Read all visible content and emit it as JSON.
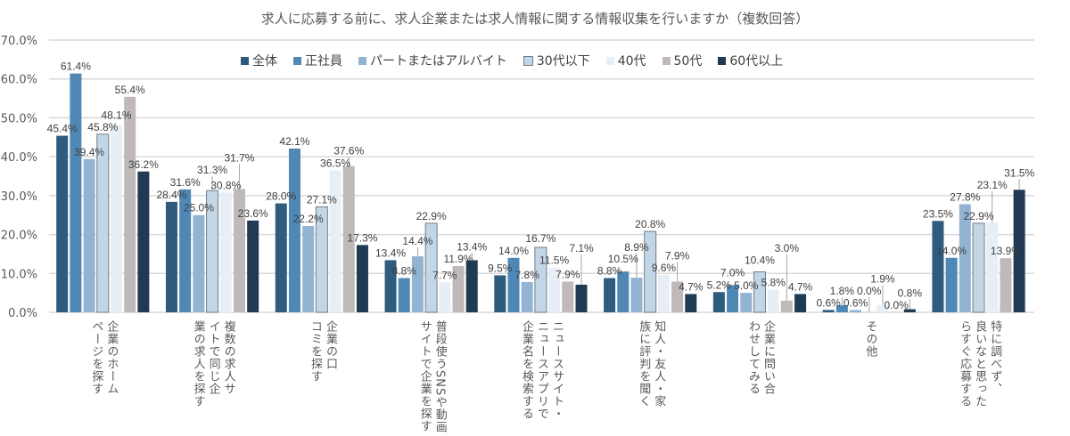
{
  "chart_data": {
    "type": "bar",
    "title": "求人に応募する前に、求人企業または求人情報に関する情報収集を行いますか（複数回答）",
    "categories": [
      "企業のホーム\nページを探す",
      "複数の求人サ\nイトで同じ企\n業の求人を探す",
      "企業の口\nコミを探す",
      "普段使うSNSや動画\nサイトで企業を探す",
      "ニュースサイト・\nニュースアプリで\n企業名を検索する",
      "知人・友人・家\n族に評判を聞く",
      "企業に問い合\nわせしてみる",
      "その他",
      "特に調べず、\n良いなと思った\nらすぐ応募する"
    ],
    "series": [
      {
        "name": "全体",
        "color": "#2f5b7c",
        "values": [
          45.4,
          28.4,
          28.0,
          13.4,
          9.5,
          8.8,
          5.2,
          0.6,
          23.5
        ]
      },
      {
        "name": "正社員",
        "color": "#4f87b5",
        "values": [
          61.4,
          31.6,
          42.1,
          8.8,
          14.0,
          10.5,
          7.0,
          1.8,
          14.0
        ]
      },
      {
        "name": "パートまたはアルバイト",
        "color": "#93b3d3",
        "values": [
          39.4,
          25.0,
          22.2,
          14.4,
          7.8,
          8.9,
          5.0,
          0.6,
          27.8
        ]
      },
      {
        "name": "30代以下",
        "color": "#c3d6e6",
        "values": [
          45.8,
          31.3,
          27.1,
          22.9,
          16.7,
          20.8,
          10.4,
          0.0,
          22.9
        ]
      },
      {
        "name": "40代",
        "color": "#e8eef5",
        "values": [
          48.1,
          30.8,
          36.5,
          7.7,
          11.5,
          9.6,
          5.8,
          1.9,
          23.1
        ]
      },
      {
        "name": "50代",
        "color": "#c0b9ba",
        "values": [
          55.4,
          31.7,
          37.6,
          11.9,
          7.9,
          7.9,
          3.0,
          0.0,
          13.9
        ]
      },
      {
        "name": "60代以上",
        "color": "#1f3a52",
        "values": [
          36.2,
          23.6,
          17.3,
          13.4,
          7.1,
          4.7,
          4.7,
          0.8,
          31.5
        ]
      }
    ],
    "yticks": [
      "0.0%",
      "10.0%",
      "20.0%",
      "30.0%",
      "40.0%",
      "50.0%",
      "60.0%",
      "70.0%"
    ],
    "ylim": [
      0,
      70
    ],
    "xlabel": "",
    "ylabel": "",
    "grid": true,
    "legend": "top"
  }
}
